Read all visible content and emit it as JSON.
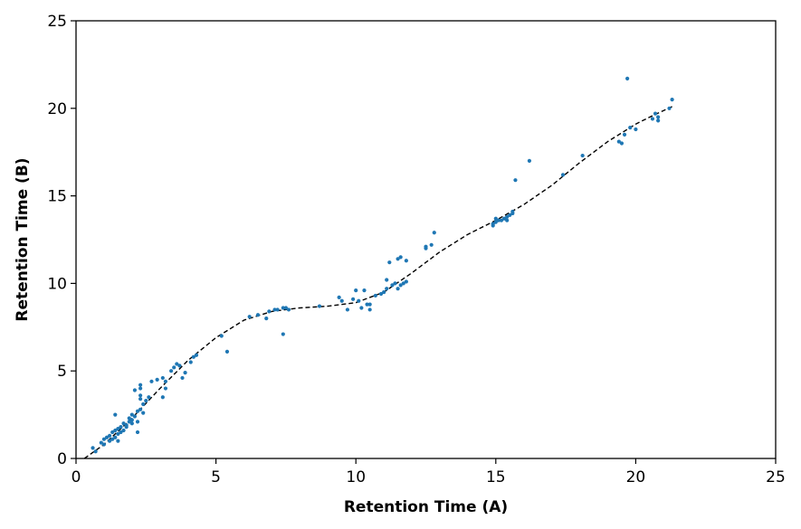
{
  "chart_data": {
    "type": "scatter",
    "xlabel": "Retention Time (A)",
    "ylabel": "Retention Time (B)",
    "xlim": [
      0,
      25
    ],
    "ylim": [
      0,
      25
    ],
    "xticks": [
      0,
      5,
      10,
      15,
      20,
      25
    ],
    "yticks": [
      0,
      5,
      10,
      15,
      20,
      25
    ],
    "grid": false,
    "colors": {
      "points": "#1f77b4",
      "fit_line": "#000000"
    },
    "series": [
      {
        "type": "scatter",
        "points": [
          [
            0.6,
            0.6
          ],
          [
            0.7,
            0.4
          ],
          [
            0.9,
            0.9
          ],
          [
            1.0,
            1.1
          ],
          [
            1.0,
            0.8
          ],
          [
            1.1,
            1.2
          ],
          [
            1.2,
            1.0
          ],
          [
            1.2,
            1.3
          ],
          [
            1.3,
            1.1
          ],
          [
            1.3,
            1.5
          ],
          [
            1.4,
            1.2
          ],
          [
            1.4,
            1.6
          ],
          [
            1.4,
            2.5
          ],
          [
            1.5,
            1.4
          ],
          [
            1.5,
            1.7
          ],
          [
            1.5,
            1.0
          ],
          [
            1.6,
            1.5
          ],
          [
            1.6,
            1.8
          ],
          [
            1.7,
            1.6
          ],
          [
            1.7,
            2.0
          ],
          [
            1.8,
            1.8
          ],
          [
            1.8,
            1.9
          ],
          [
            1.9,
            2.1
          ],
          [
            1.9,
            2.3
          ],
          [
            2.0,
            2.0
          ],
          [
            2.0,
            2.2
          ],
          [
            2.0,
            2.5
          ],
          [
            2.1,
            2.4
          ],
          [
            2.1,
            3.9
          ],
          [
            2.2,
            2.7
          ],
          [
            2.2,
            2.1
          ],
          [
            2.2,
            1.5
          ],
          [
            2.3,
            2.8
          ],
          [
            2.3,
            3.6
          ],
          [
            2.3,
            3.4
          ],
          [
            2.3,
            4.2
          ],
          [
            2.3,
            4.0
          ],
          [
            2.4,
            3.1
          ],
          [
            2.4,
            2.6
          ],
          [
            2.5,
            3.3
          ],
          [
            2.6,
            3.5
          ],
          [
            2.7,
            4.4
          ],
          [
            2.9,
            4.5
          ],
          [
            3.1,
            4.6
          ],
          [
            3.1,
            3.5
          ],
          [
            3.2,
            4.0
          ],
          [
            3.2,
            4.4
          ],
          [
            3.4,
            5.0
          ],
          [
            3.5,
            5.2
          ],
          [
            3.6,
            5.4
          ],
          [
            3.7,
            5.3
          ],
          [
            3.8,
            4.6
          ],
          [
            3.9,
            4.9
          ],
          [
            4.1,
            5.5
          ],
          [
            4.2,
            5.8
          ],
          [
            4.3,
            5.9
          ],
          [
            5.2,
            7.0
          ],
          [
            5.4,
            6.1
          ],
          [
            6.2,
            8.1
          ],
          [
            6.5,
            8.2
          ],
          [
            6.8,
            8.0
          ],
          [
            6.9,
            8.4
          ],
          [
            7.1,
            8.5
          ],
          [
            7.2,
            8.5
          ],
          [
            7.4,
            8.6
          ],
          [
            7.4,
            7.1
          ],
          [
            7.5,
            8.6
          ],
          [
            7.6,
            8.5
          ],
          [
            8.7,
            8.7
          ],
          [
            9.4,
            9.2
          ],
          [
            9.5,
            9.0
          ],
          [
            9.7,
            8.5
          ],
          [
            9.9,
            9.1
          ],
          [
            10.0,
            9.6
          ],
          [
            10.1,
            9.0
          ],
          [
            10.2,
            8.6
          ],
          [
            10.3,
            9.6
          ],
          [
            10.4,
            8.8
          ],
          [
            10.5,
            8.5
          ],
          [
            10.5,
            8.8
          ],
          [
            10.7,
            9.3
          ],
          [
            10.9,
            9.4
          ],
          [
            11.0,
            9.5
          ],
          [
            11.1,
            9.7
          ],
          [
            11.1,
            10.2
          ],
          [
            11.2,
            11.2
          ],
          [
            11.3,
            9.9
          ],
          [
            11.4,
            10.0
          ],
          [
            11.5,
            9.7
          ],
          [
            11.5,
            11.4
          ],
          [
            11.6,
            9.9
          ],
          [
            11.6,
            11.5
          ],
          [
            11.7,
            10.0
          ],
          [
            11.8,
            11.3
          ],
          [
            11.8,
            10.1
          ],
          [
            12.5,
            12.0
          ],
          [
            12.5,
            12.1
          ],
          [
            12.7,
            12.2
          ],
          [
            12.8,
            12.9
          ],
          [
            14.9,
            13.3
          ],
          [
            14.9,
            13.4
          ],
          [
            15.0,
            13.5
          ],
          [
            15.0,
            13.7
          ],
          [
            15.1,
            13.6
          ],
          [
            15.2,
            13.6
          ],
          [
            15.3,
            13.7
          ],
          [
            15.4,
            13.8
          ],
          [
            15.4,
            13.6
          ],
          [
            15.5,
            13.9
          ],
          [
            15.6,
            14.0
          ],
          [
            15.6,
            14.1
          ],
          [
            15.7,
            15.9
          ],
          [
            16.2,
            17.0
          ],
          [
            17.4,
            16.2
          ],
          [
            18.1,
            17.3
          ],
          [
            19.4,
            18.1
          ],
          [
            19.5,
            18.0
          ],
          [
            19.6,
            18.5
          ],
          [
            19.7,
            21.7
          ],
          [
            19.8,
            18.9
          ],
          [
            20.0,
            18.8
          ],
          [
            20.6,
            19.4
          ],
          [
            20.7,
            19.7
          ],
          [
            20.8,
            19.3
          ],
          [
            20.8,
            19.5
          ],
          [
            21.2,
            20.0
          ],
          [
            21.3,
            20.5
          ]
        ]
      },
      {
        "type": "line",
        "style": "dashed",
        "points": [
          [
            0.3,
            0.0
          ],
          [
            1.0,
            0.8
          ],
          [
            2.0,
            2.3
          ],
          [
            3.0,
            4.0
          ],
          [
            4.0,
            5.6
          ],
          [
            5.0,
            6.9
          ],
          [
            6.0,
            7.9
          ],
          [
            7.0,
            8.4
          ],
          [
            8.0,
            8.6
          ],
          [
            9.0,
            8.7
          ],
          [
            10.0,
            8.9
          ],
          [
            11.0,
            9.5
          ],
          [
            12.0,
            10.6
          ],
          [
            13.0,
            11.8
          ],
          [
            14.0,
            12.8
          ],
          [
            15.0,
            13.6
          ],
          [
            16.0,
            14.5
          ],
          [
            17.0,
            15.6
          ],
          [
            18.0,
            16.9
          ],
          [
            19.0,
            18.1
          ],
          [
            20.0,
            19.1
          ],
          [
            20.5,
            19.5
          ],
          [
            21.3,
            20.1
          ]
        ]
      }
    ]
  }
}
